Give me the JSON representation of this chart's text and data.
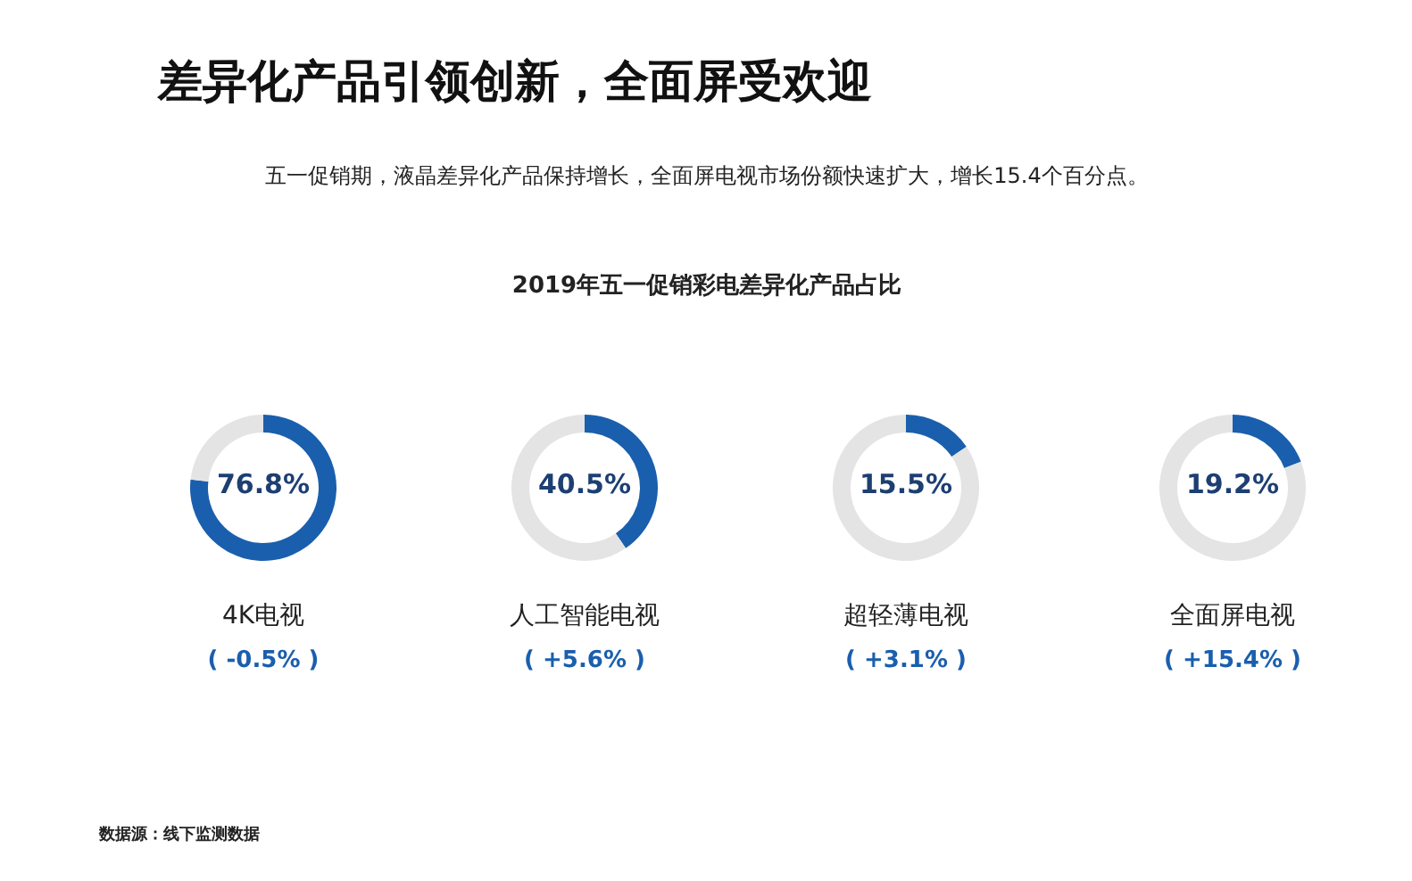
{
  "chart_data": [
    {
      "type": "other",
      "title": "差异化产品引领创新，全面屏受欢迎",
      "subtitle": "五一促销期，液晶差异化产品保持增长，全面屏电视市场份额快速扩大，增长15.4个百分点。",
      "annotations": [
        "2019年五一促销彩电差异化产品占比",
        "数据源：线下监测数据"
      ]
    },
    {
      "type": "donut",
      "title": "4K电视",
      "categories": [
        null,
        null
      ],
      "values": [
        76.8,
        23.2
      ],
      "colors": [
        "#1a5fad",
        "#e4e4e4"
      ],
      "value_labels": [
        "76.8%",
        null
      ],
      "annotations": [
        "( -0.5% )"
      ]
    },
    {
      "type": "donut",
      "title": "人工智能电视",
      "categories": [
        null,
        null
      ],
      "values": [
        40.5,
        59.5
      ],
      "colors": [
        "#1a5fad",
        "#e4e4e4"
      ],
      "value_labels": [
        "40.5%",
        null
      ],
      "annotations": [
        "( +5.6% )"
      ]
    },
    {
      "type": "donut",
      "title": "超轻薄电视",
      "categories": [
        null,
        null
      ],
      "values": [
        15.5,
        84.5
      ],
      "colors": [
        "#1a5fad",
        "#e4e4e4"
      ],
      "value_labels": [
        "15.5%",
        null
      ],
      "annotations": [
        "( +3.1% )"
      ]
    },
    {
      "type": "donut",
      "title": "全面屏电视",
      "categories": [
        null,
        null
      ],
      "values": [
        19.2,
        80.8
      ],
      "colors": [
        "#1a5fad",
        "#e4e4e4"
      ],
      "value_labels": [
        "19.2%",
        null
      ],
      "annotations": [
        "( +15.4% )"
      ]
    }
  ]
}
